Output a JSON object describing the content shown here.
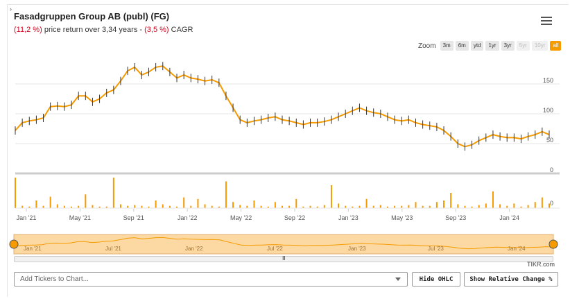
{
  "header": {
    "title": "Fasadgruppen Group AB (publ) (FG)",
    "return_value": "(11,2 %)",
    "return_text": " price return over 3,34 years - ",
    "cagr_value": "(3,5 %)",
    "cagr_text": " CAGR"
  },
  "zoom": {
    "label": "Zoom",
    "buttons": [
      {
        "label": "3m",
        "state": "enabled"
      },
      {
        "label": "6m",
        "state": "enabled"
      },
      {
        "label": "ytd",
        "state": "enabled"
      },
      {
        "label": "1yr",
        "state": "enabled"
      },
      {
        "label": "3yr",
        "state": "enabled"
      },
      {
        "label": "5yr",
        "state": "disabled"
      },
      {
        "label": "10yr",
        "state": "disabled"
      },
      {
        "label": "all",
        "state": "active"
      }
    ]
  },
  "chart_data": {
    "type": "line",
    "price_axis_ticks": [
      "150",
      "100",
      "50",
      "0"
    ],
    "volume_axis_ticks": [
      "0"
    ],
    "x_tick_labels": [
      "Jan '21",
      "May '21",
      "Sep '21",
      "Jan '22",
      "May '22",
      "Sep '22",
      "Jan '23",
      "May '23",
      "Sep '23",
      "Jan '24"
    ],
    "price_ylim": [
      0,
      200
    ],
    "price_series": [
      72,
      85,
      88,
      90,
      93,
      112,
      113,
      112,
      115,
      130,
      130,
      120,
      125,
      135,
      140,
      155,
      172,
      178,
      165,
      170,
      178,
      180,
      170,
      160,
      165,
      160,
      158,
      155,
      157,
      152,
      130,
      110,
      90,
      85,
      88,
      90,
      93,
      95,
      90,
      88,
      85,
      82,
      85,
      85,
      87,
      90,
      95,
      100,
      105,
      110,
      105,
      102,
      100,
      95,
      90,
      88,
      90,
      85,
      82,
      80,
      78,
      72,
      62,
      50,
      45,
      48,
      55,
      60,
      65,
      62,
      60,
      60,
      58,
      62,
      65,
      70,
      65
    ],
    "volume_series": [
      40,
      3,
      2,
      10,
      3,
      15,
      5,
      3,
      2,
      3,
      18,
      4,
      2,
      2,
      40,
      5,
      3,
      4,
      3,
      2,
      10,
      5,
      3,
      2,
      14,
      3,
      12,
      5,
      3,
      2,
      35,
      8,
      4,
      3,
      10,
      3,
      2,
      8,
      3,
      3,
      12,
      2,
      3,
      2,
      4,
      30,
      6,
      3,
      2,
      3,
      12,
      3,
      4,
      2,
      3,
      3,
      4,
      8,
      3,
      3,
      8,
      10,
      20,
      5,
      3,
      2,
      4,
      6,
      22,
      5,
      3,
      6,
      2,
      4,
      8,
      14,
      6
    ]
  },
  "navigator": {
    "labels": [
      "Jan '21",
      "Jul '21",
      "Jan '22",
      "Jul '22",
      "Jan '23",
      "Jul '23",
      "Jan '24"
    ]
  },
  "footer": {
    "credit": "TIKR.com",
    "ticker_placeholder": "Add Tickers to Chart...",
    "hide_ohlc": "Hide OHLC",
    "show_relative": "Show Relative Change %"
  },
  "colors": {
    "accent": "#f59b00",
    "negative": "#d0021b",
    "navigator_fill": "#fcd9a3"
  }
}
